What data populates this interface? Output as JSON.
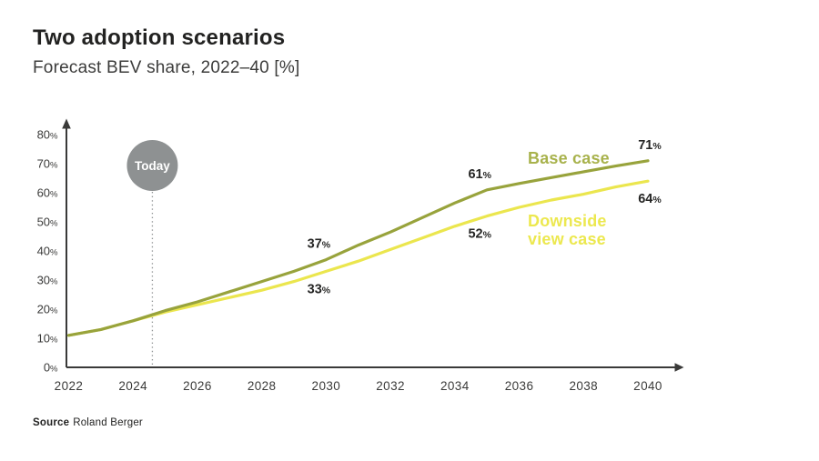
{
  "header": {
    "title": "Two adoption scenarios",
    "subtitle": "Forecast BEV share, 2022–40 [%]"
  },
  "source": {
    "label": "Source",
    "text": "Roland Berger"
  },
  "today": {
    "label": "Today",
    "year": 2024.6
  },
  "colors": {
    "base_case_line": "#98a33c",
    "base_case_label": "#a8b24c",
    "downside_line": "#ebe64e",
    "downside_label": "#ece84f",
    "axis": "#3a3a39",
    "tick_text": "#3a3a39",
    "data_label_text": "#262625",
    "today_circle": "#8e9192",
    "today_text": "#ffffff",
    "today_dotted_line": "#8f9293"
  },
  "chart_data": {
    "type": "line",
    "title": "Forecast BEV share, 2022–40 [%]",
    "x": [
      2022,
      2023,
      2024,
      2025,
      2026,
      2027,
      2028,
      2029,
      2030,
      2031,
      2032,
      2033,
      2034,
      2035,
      2036,
      2037,
      2038,
      2039,
      2040
    ],
    "xticks": [
      2022,
      2024,
      2026,
      2028,
      2030,
      2032,
      2034,
      2036,
      2038,
      2040
    ],
    "yticks": [
      0,
      10,
      20,
      30,
      40,
      50,
      60,
      70,
      80
    ],
    "ylim": [
      0,
      85
    ],
    "unit": "%",
    "grid": false,
    "legend_position": "inline-right",
    "series": [
      {
        "name": "Base case",
        "label_lines": [
          "Base case"
        ],
        "color_key": "base_case_line",
        "label_color_key": "base_case_label",
        "values": [
          11,
          13,
          16,
          19.5,
          22.5,
          26,
          29.5,
          33,
          37,
          42,
          46.5,
          51.5,
          56.5,
          61,
          63.2,
          65.2,
          67.2,
          69.2,
          71
        ]
      },
      {
        "name": "Downside view case",
        "label_lines": [
          "Downside",
          "view case"
        ],
        "color_key": "downside_line",
        "label_color_key": "downside_label",
        "values": [
          11,
          13,
          16,
          19,
          21.5,
          24,
          26.5,
          29.5,
          33,
          36.5,
          40.5,
          44.5,
          48.5,
          52,
          55,
          57.5,
          59.5,
          62,
          64
        ]
      }
    ],
    "annotations": [
      {
        "series": "Base case",
        "year": 2030,
        "value": 37,
        "text": "37%",
        "placement": "above"
      },
      {
        "series": "Base case",
        "year": 2035,
        "value": 61,
        "text": "61%",
        "placement": "above"
      },
      {
        "series": "Base case",
        "year": 2040,
        "value": 71,
        "text": "71%",
        "placement": "above"
      },
      {
        "series": "Downside view case",
        "year": 2030,
        "value": 33,
        "text": "33%",
        "placement": "below"
      },
      {
        "series": "Downside view case",
        "year": 2035,
        "value": 52,
        "text": "52%",
        "placement": "below"
      },
      {
        "series": "Downside view case",
        "year": 2040,
        "value": 64,
        "text": "64%",
        "placement": "below"
      }
    ]
  }
}
